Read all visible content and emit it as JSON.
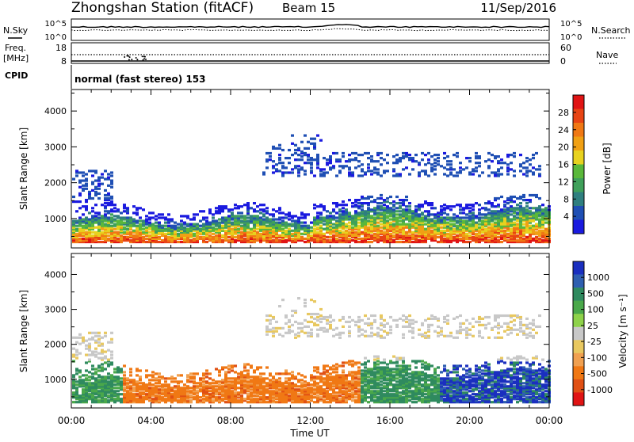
{
  "header": {
    "station": "Zhongshan Station (fitACF)",
    "beam": "Beam 15",
    "date": "11/Sep/2016"
  },
  "strips": {
    "nsky_label": "N.Sky",
    "nsearch_label": "N.Search",
    "noise_ticks": [
      "10^5",
      "10^0"
    ],
    "freq_label_1": "Freq.",
    "freq_label_2": "[MHz]",
    "freq_ticks": [
      "18",
      "8"
    ],
    "nave_label": "Nave",
    "nave_ticks": [
      "60",
      "0"
    ],
    "cpid_label": "CPID",
    "cpid_text": "normal (fast stereo) 153"
  },
  "colors": {
    "power": [
      "#1a1adf",
      "#1f4fb4",
      "#2f7f7f",
      "#3fa05a",
      "#5ab83a",
      "#e8d21f",
      "#f0a014",
      "#f07814",
      "#e84414",
      "#e01414"
    ],
    "velocity": [
      "#1a2fbf",
      "#2f5fb0",
      "#2f8a5f",
      "#4aa84a",
      "#8ed24a",
      "#c8c8c8",
      "#e8c860",
      "#f0a050",
      "#f07814",
      "#e05014",
      "#e01414"
    ]
  },
  "chart_data": [
    {
      "type": "heatmap",
      "name": "power",
      "xlabel": "",
      "ylabel": "Slant Range [km]",
      "x_ticks": [
        "00:00",
        "04:00",
        "08:00",
        "12:00",
        "16:00",
        "20:00",
        "00:00"
      ],
      "x_range_hours": [
        0,
        24
      ],
      "ylim": [
        180,
        4600
      ],
      "y_ticks": [
        1000,
        2000,
        3000,
        4000
      ],
      "colorbar_label": "Power [dB]",
      "colorbar_ticks": [
        "4",
        "8",
        "12",
        "16",
        "20",
        "24",
        "28"
      ],
      "colorbar_range": [
        0,
        30
      ]
    },
    {
      "type": "heatmap",
      "name": "velocity",
      "xlabel": "Time UT",
      "ylabel": "Slant Range [km]",
      "x_ticks": [
        "00:00",
        "04:00",
        "08:00",
        "12:00",
        "16:00",
        "20:00",
        "00:00"
      ],
      "x_range_hours": [
        0,
        24
      ],
      "ylim": [
        180,
        4600
      ],
      "y_ticks": [
        1000,
        2000,
        3000,
        4000
      ],
      "colorbar_label": "Velocity [m s⁻¹]",
      "colorbar_ticks": [
        "1000",
        "500",
        "100",
        "25",
        "-25",
        "-100",
        "-500",
        "-1000"
      ]
    }
  ]
}
